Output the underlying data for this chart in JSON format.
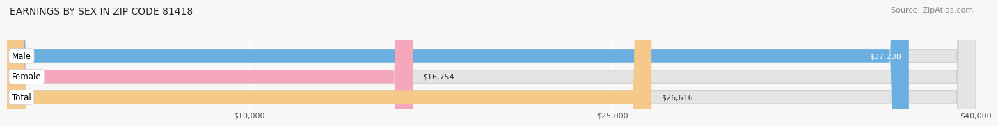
{
  "title": "EARNINGS BY SEX IN ZIP CODE 81418",
  "source": "Source: ZipAtlas.com",
  "categories": [
    "Male",
    "Female",
    "Total"
  ],
  "values": [
    37238,
    16754,
    26616
  ],
  "bar_colors": [
    "#6aafe0",
    "#f5a8bc",
    "#f5c98a"
  ],
  "label_colors": [
    "white",
    "black",
    "black"
  ],
  "xlim": [
    0,
    40000
  ],
  "xticks": [
    10000,
    25000,
    40000
  ],
  "xtick_labels": [
    "$10,000",
    "$25,000",
    "$40,000"
  ],
  "value_labels": [
    "$37,238",
    "$16,754",
    "$26,616"
  ],
  "background_color": "#f7f7f7",
  "bar_background_color": "#e4e4e4",
  "title_fontsize": 10,
  "source_fontsize": 8,
  "tick_fontsize": 8,
  "bar_label_fontsize": 8,
  "category_fontsize": 8.5
}
